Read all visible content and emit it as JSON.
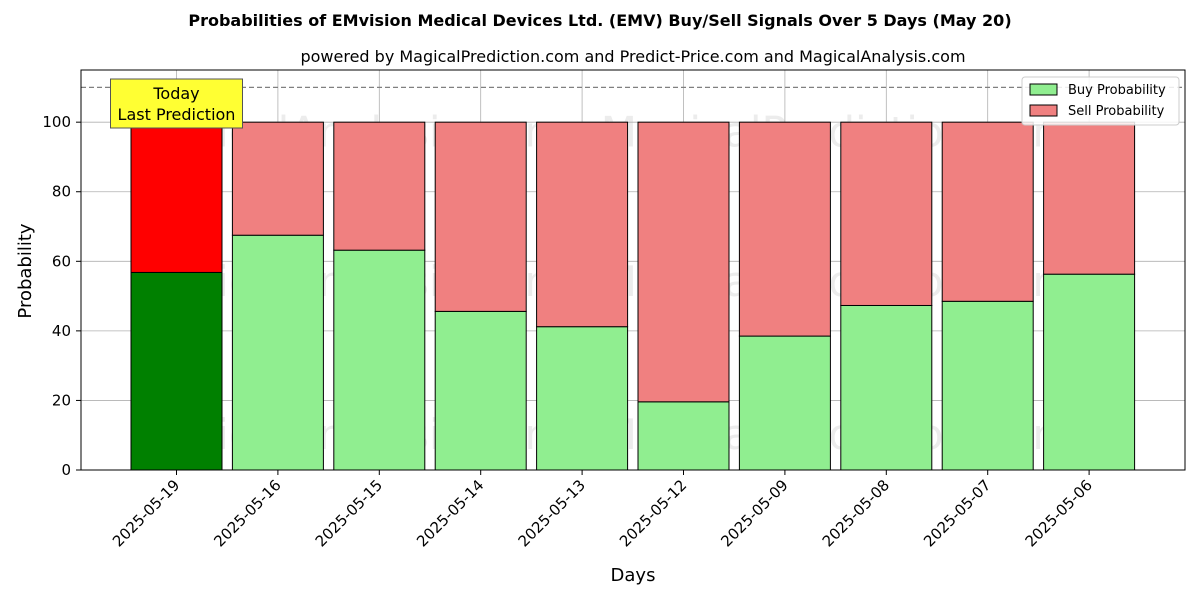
{
  "chart_data": {
    "type": "bar",
    "stacked": true,
    "title": "Probabilities of EMvision Medical Devices Ltd. (EMV) Buy/Sell Signals Over 5 Days (May 20)",
    "subtitle": "powered by MagicalPrediction.com and Predict-Price.com and MagicalAnalysis.com",
    "xlabel": "Days",
    "ylabel": "Probability",
    "ylim": [
      0,
      115
    ],
    "yticks": [
      0,
      20,
      40,
      60,
      80,
      100
    ],
    "grid": true,
    "legend_position": "top-right",
    "categories": [
      "2025-05-19",
      "2025-05-16",
      "2025-05-15",
      "2025-05-14",
      "2025-05-13",
      "2025-05-12",
      "2025-05-09",
      "2025-05-08",
      "2025-05-07",
      "2025-05-06"
    ],
    "series": [
      {
        "name": "Buy Probability",
        "color": "#90ee90",
        "highlight_color": "#008000",
        "values": [
          56.8,
          67.5,
          63.2,
          45.6,
          41.2,
          19.6,
          38.5,
          47.3,
          48.5,
          56.3
        ]
      },
      {
        "name": "Sell Probability",
        "color": "#f08080",
        "highlight_color": "#ff0000",
        "values": [
          43.2,
          32.5,
          36.8,
          54.4,
          58.8,
          80.4,
          61.5,
          52.7,
          51.5,
          43.7
        ]
      }
    ],
    "reference_line": {
      "y": 110,
      "style": "dashed",
      "color": "#808080"
    },
    "annotation": {
      "lines": [
        "Today",
        "Last Prediction"
      ],
      "category_index": 0,
      "background": "#ffff33"
    },
    "watermarks": [
      "MagicalAnalysis.com",
      "MagicalPrediction.com"
    ]
  }
}
